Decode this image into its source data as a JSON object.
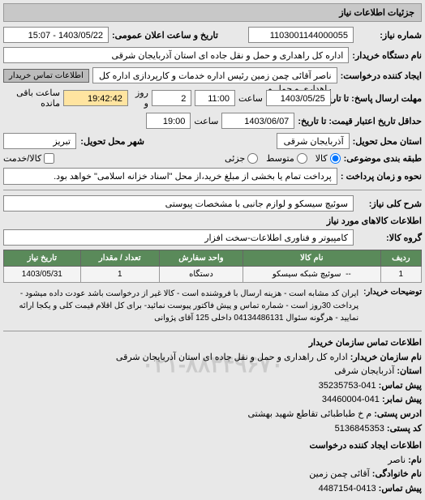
{
  "header": {
    "title": "جزئیات اطلاعات نیاز"
  },
  "form": {
    "needNoLabel": "شماره نیاز:",
    "needNo": "1103001144000055",
    "announceLabel": "تاریخ و ساعت اعلان عمومی:",
    "announceValue": "1403/05/22 - 15:07",
    "buyerOrgLabel": "نام دستگاه خریدار:",
    "buyerOrg": "اداره کل راهداری و حمل و نقل جاده ای استان آذربایجان شرقی",
    "requesterLabel": "ایجاد کننده درخواست:",
    "requester": "ناصر آقائی چمن زمین رئیس اداره خدمات و کارپردازی اداره کل راهداری و حمل و",
    "btnBuyerContact": "اطلاعات تماس خریدار",
    "replyDeadlineLabel": "مهلت ارسال پاسخ: تا تاریخ:",
    "replyDate": "1403/05/25",
    "timeLabel": "ساعت",
    "replyTime": "11:00",
    "dayWord": "روز و",
    "remainDays": "2",
    "remainTime": "19:42:42",
    "remainSuffix": "ساعت باقی مانده",
    "validityLabel": "حداقل تاریخ اعتبار قیمت: تا تاریخ:",
    "validityDate": "1403/06/07",
    "validityTime": "19:00",
    "deliveryProvinceLabel": "استان محل تحویل:",
    "deliveryProvince": "آذربایجان شرقی",
    "deliveryCityLabel": "شهر محل تحویل:",
    "deliveryCity": "تبریز",
    "budgetTypeLabel": "طبقه بندی موضوعی:",
    "budgetOptions": {
      "goods": "کالا",
      "med": "متوسط",
      "partial": "جزئی"
    },
    "partialCheck": "کالا/خدمت",
    "paymentLabel": "نحوه و زمان پرداخت :",
    "paymentNote": "پرداخت تمام یا بخشی از مبلغ خرید،از محل \"اسناد خزانه اسلامی\" خواهد بود.",
    "shortDescLabel": "شرح کلی نیاز:",
    "shortDesc": "سوئیچ سیسکو و لوازم جانبی با مشخصات پیوستی",
    "goodsInfoTitle": "اطلاعات کالاهای مورد نیاز",
    "goodsGroupLabel": "گروه کالا:",
    "goodsGroup": "کامپیوتر و فناوری اطلاعات-سخت افزار"
  },
  "table": {
    "headers": [
      "ردیف",
      "نام کالا",
      "واحد سفارش",
      "تعداد / مقدار",
      "تاریخ نیاز"
    ],
    "row": {
      "idx": "1",
      "name": "سوئیچ شبکه سیسکو",
      "nameExtra": "--",
      "unit": "دستگاه",
      "qty": "1",
      "date": "1403/05/31"
    }
  },
  "description": {
    "label": "توضیحات خریدار:",
    "text": "ایران کد مشابه است - هزینه ارسال با فروشنده است - کالا غیر از درخواست باشد عودت داده میشود - پرداخت 30روز است - شماره تماس و پیش فاکتور پیوست نمائید- برای کل اقلام قیمت کلی و یکجا ارائه نمایید - هرگونه سئوال 04134486131 داخلی 125 آقای پژوانی"
  },
  "watermark": "۰۲۱-۸۸۳۴۹۶۷۰",
  "contact": {
    "title1": "اطلاعات تماس سازمان خریدار",
    "orgLabel": "نام سازمان خریدار:",
    "org": "اداره کل راهداری و حمل و نقل جاده ای استان آذربایجان شرقی",
    "provinceLabel": "استان:",
    "province": "آذربایجان شرقی",
    "phoneLabel": "پیش تماس:",
    "phone": "041-35235753",
    "faxLabel": "پیش نمابر:",
    "fax": "041-34460004",
    "addrLabel": "ادرس پستی:",
    "addr": "م خ طباطبائی تقاطع شهید بهشتی",
    "postLabel": "کد پستی:",
    "post": "5136845353",
    "title2": "اطلاعات ایجاد کننده درخواست",
    "nameLabel": "نام:",
    "name": "ناصر",
    "familyLabel": "نام خانوادگی:",
    "family": "آقائی چمن زمین",
    "phone2Label": "پیش تماس:",
    "phone2": "0413-4487154"
  }
}
